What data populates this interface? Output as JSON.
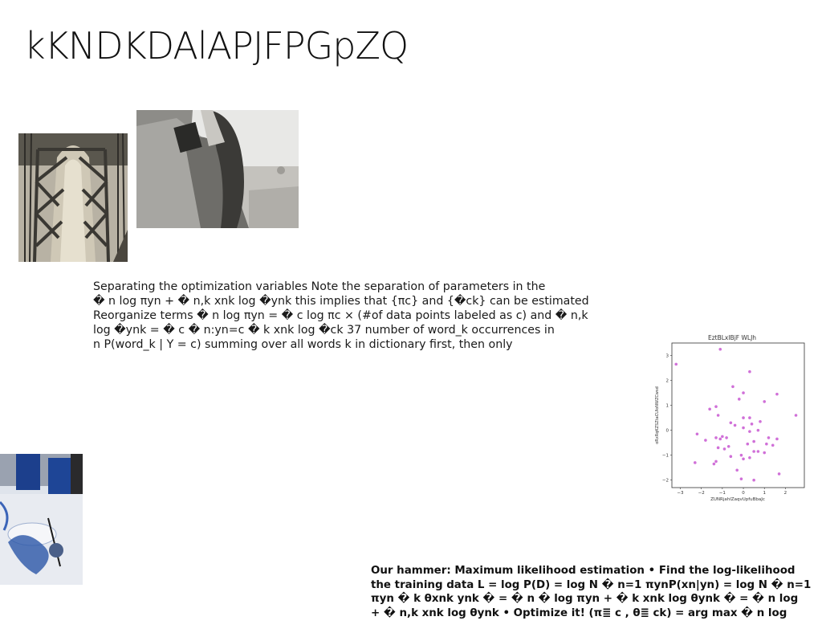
{
  "slide": {
    "title": "kKNDKDAlAPJFPGpZQ"
  },
  "images": {
    "bridge": {
      "description_name": "bridge-tower-photo"
    },
    "woman": {
      "description_name": "woman-in-car-photo"
    },
    "table": {
      "description_name": "blue-table-setting-photo"
    }
  },
  "body_text": {
    "lines": [
      "Separating the optimization variables Note the separation of parameters in the",
      "� n log πyn + � n,k xnk log �ynk this implies that {πc} and {�ck} can be estimated",
      "Reorganize terms � n log πyn = � c log πc × (#of data points labeled as c) and � n,k",
      "log �ynk = � c � n:yn=c � k xnk log �ck 37 number of word_k occurrences in",
      "n P(word_k | Y = c) summing over all words k in dictionary first, then only"
    ]
  },
  "footer_text": {
    "lines": [
      "Our hammer: Maximum likelihood estimation • Find the log-likelihood",
      "the training data L = log P(D) = log N � n=1 πynP(xn|yn) = log N � n=1",
      "πyn � k θxnk ynk � = � n � log πyn + � k xnk log θynk � = � n log",
      "+ � n,k xnk log θynk • Optimize it! (π≣ c , θ≣ ck) = arg max � n log"
    ]
  },
  "chart_data": {
    "type": "scatter",
    "title": "EztBLxIBjF WLJh",
    "xlabel": "ZUNRjahIZaqvUpfuBbaJc",
    "ylabel": "oRxRqKZSZtaCUloNWZCwsd",
    "xlim": [
      -3.4,
      2.9
    ],
    "ylim": [
      -2.3,
      3.5
    ],
    "xticks": [
      "-3",
      "-2",
      "-1",
      "0",
      "1",
      "2"
    ],
    "yticks": [
      "-2",
      "-1",
      "0",
      "1",
      "2",
      "3"
    ],
    "grid": false,
    "color": "#d070d8",
    "points": [
      [
        -3.2,
        2.65
      ],
      [
        -1.1,
        3.25
      ],
      [
        0.3,
        2.35
      ],
      [
        -0.5,
        1.75
      ],
      [
        0.0,
        1.5
      ],
      [
        1.6,
        1.45
      ],
      [
        -0.2,
        1.25
      ],
      [
        1.0,
        1.15
      ],
      [
        -1.3,
        0.95
      ],
      [
        -1.6,
        0.85
      ],
      [
        -1.2,
        0.6
      ],
      [
        2.5,
        0.6
      ],
      [
        0.0,
        0.5
      ],
      [
        0.3,
        0.5
      ],
      [
        -0.6,
        0.3
      ],
      [
        0.8,
        0.35
      ],
      [
        0.4,
        0.25
      ],
      [
        -0.4,
        0.2
      ],
      [
        0.0,
        0.1
      ],
      [
        0.7,
        0.0
      ],
      [
        0.3,
        -0.05
      ],
      [
        -2.2,
        -0.15
      ],
      [
        -1.0,
        -0.25
      ],
      [
        -0.8,
        -0.3
      ],
      [
        -1.3,
        -0.3
      ],
      [
        -1.1,
        -0.35
      ],
      [
        1.2,
        -0.3
      ],
      [
        1.6,
        -0.35
      ],
      [
        -1.8,
        -0.4
      ],
      [
        0.5,
        -0.45
      ],
      [
        1.1,
        -0.55
      ],
      [
        0.2,
        -0.55
      ],
      [
        1.4,
        -0.6
      ],
      [
        -0.7,
        -0.65
      ],
      [
        -1.2,
        -0.7
      ],
      [
        -0.9,
        -0.75
      ],
      [
        0.7,
        -0.85
      ],
      [
        0.5,
        -0.85
      ],
      [
        1.0,
        -0.9
      ],
      [
        -0.1,
        -1.0
      ],
      [
        -0.6,
        -1.05
      ],
      [
        0.3,
        -1.1
      ],
      [
        0.0,
        -1.15
      ],
      [
        -1.3,
        -1.25
      ],
      [
        -2.3,
        -1.3
      ],
      [
        -1.4,
        -1.35
      ],
      [
        -0.3,
        -1.6
      ],
      [
        1.7,
        -1.75
      ],
      [
        -0.1,
        -1.95
      ],
      [
        0.5,
        -2.0
      ]
    ]
  }
}
